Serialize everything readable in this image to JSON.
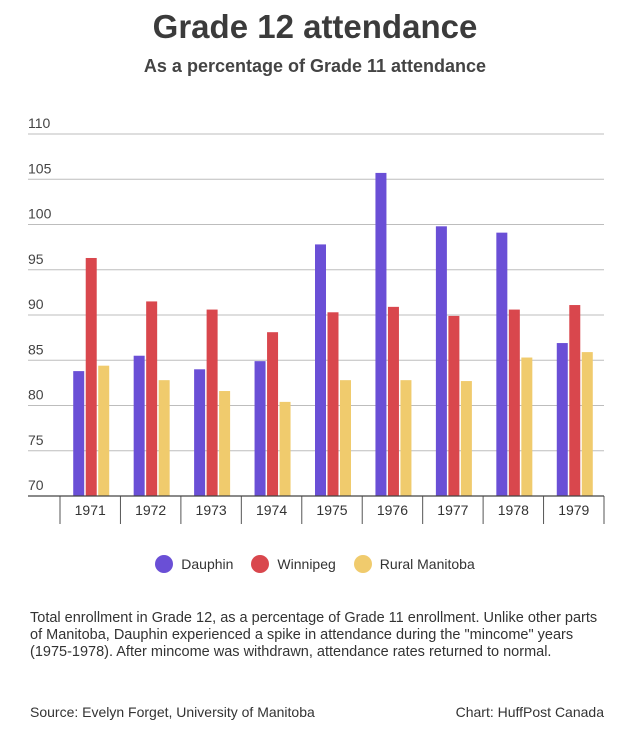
{
  "title": "Grade 12 attendance",
  "subtitle": "As a percentage of Grade 11 attendance",
  "note": "Total enrollment in Grade 12, as a percentage of Grade 11 enrollment. Unlike other parts of Manitoba, Dauphin experienced a spike in attendance during the \"mincome\" years (1975-1978). After mincome was withdrawn, attendance rates returned to normal.",
  "source": "Source: Evelyn Forget, University of Manitoba",
  "credit": "Chart: HuffPost Canada",
  "chart_data": {
    "type": "bar",
    "categories": [
      "1971",
      "1972",
      "1973",
      "1974",
      "1975",
      "1976",
      "1977",
      "1978",
      "1979"
    ],
    "series": [
      {
        "name": "Dauphin",
        "color": "#6a4fd6",
        "values": [
          83.8,
          85.5,
          84.0,
          84.9,
          97.8,
          105.7,
          99.8,
          99.1,
          86.9
        ]
      },
      {
        "name": "Winnipeg",
        "color": "#d9474d",
        "values": [
          96.3,
          91.5,
          90.6,
          88.1,
          90.3,
          90.9,
          89.9,
          90.6,
          91.1
        ]
      },
      {
        "name": "Rural Manitoba",
        "color": "#f0cb6d",
        "values": [
          84.4,
          82.8,
          81.6,
          80.4,
          82.8,
          82.8,
          82.7,
          85.3,
          85.9
        ]
      }
    ],
    "ylim": [
      70,
      110
    ],
    "yticks": [
      "70",
      "75",
      "80",
      "85",
      "90",
      "95",
      "100",
      "105",
      "110"
    ],
    "grid": true,
    "legend_position": "bottom"
  }
}
